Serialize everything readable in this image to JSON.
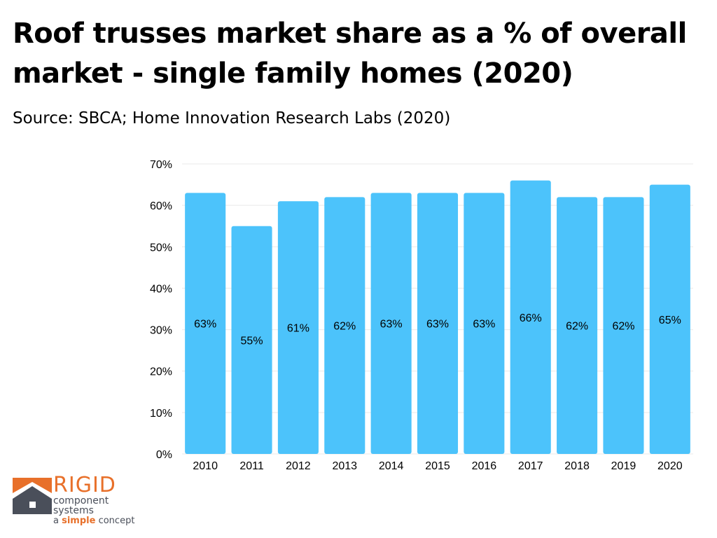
{
  "header": {
    "title": "Roof trusses market share as a % of overall market - single family homes (2020)",
    "subtitle": "Source: SBCA; Home Innovation Research Labs (2020)"
  },
  "logo": {
    "word": "RIGID",
    "line1": "component",
    "line2": "systems",
    "tag_prefix": "a",
    "tag_emphasis": "simple",
    "tag_suffix": "concept",
    "colors": {
      "orange": "#e8702a",
      "gray": "#4a4f5a"
    }
  },
  "chart_data": {
    "type": "bar",
    "title": "Roof trusses market share as a % of overall market - single family homes (2020)",
    "categories": [
      "2010",
      "2011",
      "2012",
      "2013",
      "2014",
      "2015",
      "2016",
      "2017",
      "2018",
      "2019",
      "2020"
    ],
    "values": [
      63,
      55,
      61,
      62,
      63,
      63,
      63,
      66,
      62,
      62,
      65
    ],
    "data_labels": [
      "63%",
      "55%",
      "61%",
      "62%",
      "63%",
      "63%",
      "63%",
      "66%",
      "62%",
      "62%",
      "65%"
    ],
    "xlabel": "",
    "ylabel": "",
    "ylim": [
      0,
      70
    ],
    "yticks": [
      0,
      10,
      20,
      30,
      40,
      50,
      60,
      70
    ],
    "ytick_labels": [
      "0%",
      "10%",
      "20%",
      "30%",
      "40%",
      "50%",
      "60%",
      "70%"
    ],
    "grid": true,
    "legend": "none",
    "bar_color": "#4cc3fb"
  }
}
